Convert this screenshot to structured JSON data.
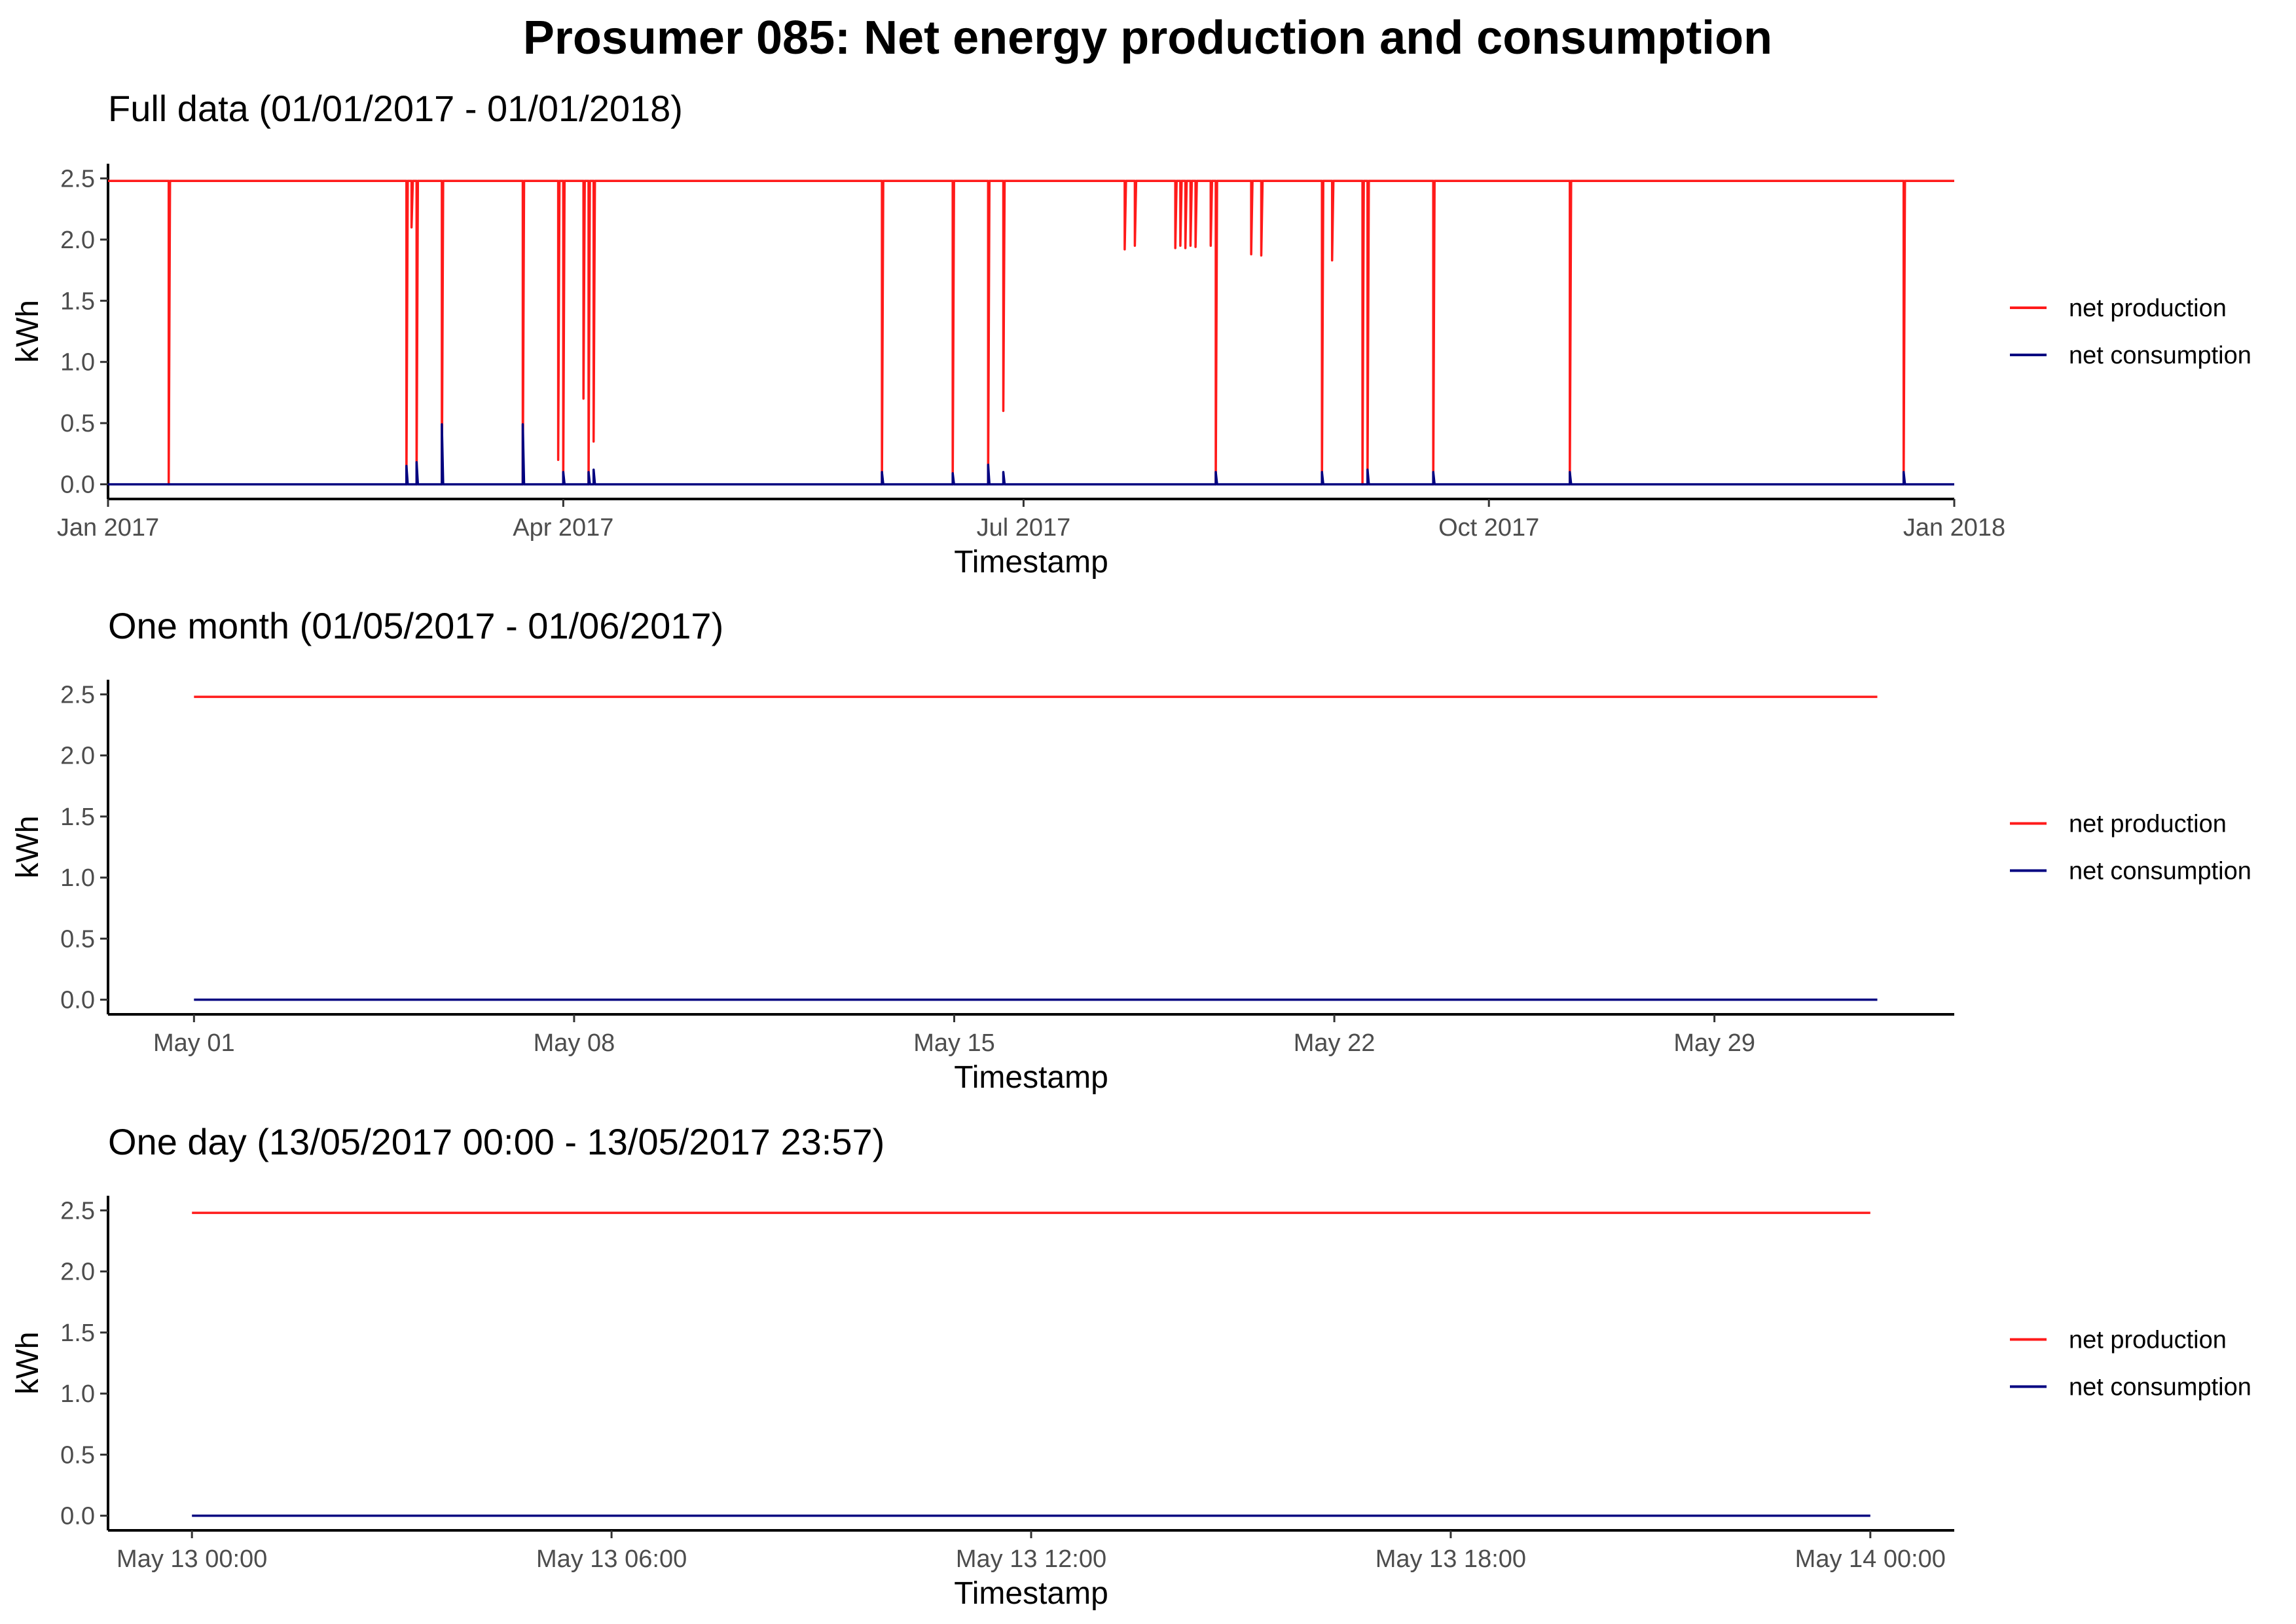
{
  "title": "Prosumer 085: Net energy production and consumption",
  "colors": {
    "production": "#ff1a1a",
    "consumption": "#000080",
    "axis": "#000000",
    "tick_text": "#4d4d4d"
  },
  "legend": {
    "production_label": "net production",
    "consumption_label": "net consumption"
  },
  "chart_data": [
    {
      "type": "line",
      "title": "Full data (01/01/2017 - 01/01/2018)",
      "xlabel": "Timestamp",
      "ylabel": "kWh",
      "x_unit": "date",
      "xlim": [
        "2017-01-01",
        "2018-01-01"
      ],
      "ylim": [
        -0.12,
        2.62
      ],
      "y_ticks": [
        0.0,
        0.5,
        1.0,
        1.5,
        2.0,
        2.5
      ],
      "y_tick_labels": [
        "0.0",
        "0.5",
        "1.0",
        "1.5",
        "2.0",
        "2.5"
      ],
      "x_ticks": [
        {
          "at": "2017-01-01",
          "label": "Jan 2017"
        },
        {
          "at": "2017-04-01",
          "label": "Apr 2017"
        },
        {
          "at": "2017-07-01",
          "label": "Jul 2017"
        },
        {
          "at": "2017-10-01",
          "label": "Oct 2017"
        },
        {
          "at": "2018-01-01",
          "label": "Jan 2018"
        }
      ],
      "grid": false,
      "legend_position": "right",
      "baseline": {
        "production": 2.48,
        "consumption": 0.0
      },
      "production_dips": [
        {
          "x": "2017-01-13",
          "y": 0.0
        },
        {
          "x": "2017-03-01",
          "y": 0.0
        },
        {
          "x": "2017-03-02",
          "y": 2.1
        },
        {
          "x": "2017-03-03",
          "y": 0.0
        },
        {
          "x": "2017-03-08",
          "y": 0.0
        },
        {
          "x": "2017-03-24",
          "y": 0.0
        },
        {
          "x": "2017-03-31",
          "y": 0.2
        },
        {
          "x": "2017-04-01",
          "y": 0.0
        },
        {
          "x": "2017-04-05",
          "y": 0.7
        },
        {
          "x": "2017-04-06",
          "y": 0.0
        },
        {
          "x": "2017-04-07",
          "y": 0.35
        },
        {
          "x": "2017-06-03",
          "y": 0.0
        },
        {
          "x": "2017-06-17",
          "y": 0.0
        },
        {
          "x": "2017-06-24",
          "y": 0.0
        },
        {
          "x": "2017-06-27",
          "y": 0.6
        },
        {
          "x": "2017-07-21",
          "y": 1.92
        },
        {
          "x": "2017-07-23",
          "y": 1.95
        },
        {
          "x": "2017-07-31",
          "y": 1.93
        },
        {
          "x": "2017-08-01",
          "y": 1.95
        },
        {
          "x": "2017-08-02",
          "y": 1.93
        },
        {
          "x": "2017-08-03",
          "y": 1.95
        },
        {
          "x": "2017-08-04",
          "y": 1.94
        },
        {
          "x": "2017-08-07",
          "y": 1.95
        },
        {
          "x": "2017-08-08",
          "y": 0.0
        },
        {
          "x": "2017-08-15",
          "y": 1.88
        },
        {
          "x": "2017-08-17",
          "y": 1.87
        },
        {
          "x": "2017-08-29",
          "y": 0.0
        },
        {
          "x": "2017-08-31",
          "y": 1.83
        },
        {
          "x": "2017-09-06",
          "y": 0.0
        },
        {
          "x": "2017-09-07",
          "y": 0.0
        },
        {
          "x": "2017-09-20",
          "y": 0.0
        },
        {
          "x": "2017-10-17",
          "y": 0.0
        },
        {
          "x": "2017-12-22",
          "y": 0.0
        }
      ],
      "consumption_spikes": [
        {
          "x": "2017-03-01",
          "y": 0.15
        },
        {
          "x": "2017-03-03",
          "y": 0.18
        },
        {
          "x": "2017-03-08",
          "y": 0.49
        },
        {
          "x": "2017-03-24",
          "y": 0.49
        },
        {
          "x": "2017-04-01",
          "y": 0.1
        },
        {
          "x": "2017-04-06",
          "y": 0.1
        },
        {
          "x": "2017-04-07",
          "y": 0.12
        },
        {
          "x": "2017-06-03",
          "y": 0.1
        },
        {
          "x": "2017-06-17",
          "y": 0.09
        },
        {
          "x": "2017-06-24",
          "y": 0.16
        },
        {
          "x": "2017-06-27",
          "y": 0.1
        },
        {
          "x": "2017-08-08",
          "y": 0.1
        },
        {
          "x": "2017-08-29",
          "y": 0.1
        },
        {
          "x": "2017-09-07",
          "y": 0.12
        },
        {
          "x": "2017-09-20",
          "y": 0.1
        },
        {
          "x": "2017-10-17",
          "y": 0.1
        },
        {
          "x": "2017-12-22",
          "y": 0.1
        }
      ]
    },
    {
      "type": "line",
      "title": "One month (01/05/2017 - 01/06/2017)",
      "xlabel": "Timestamp",
      "ylabel": "kWh",
      "x_unit": "date",
      "xlim": [
        "2017-04-29T10:00",
        "2017-06-02T10:00"
      ],
      "ylim": [
        -0.12,
        2.62
      ],
      "y_ticks": [
        0.0,
        0.5,
        1.0,
        1.5,
        2.0,
        2.5
      ],
      "y_tick_labels": [
        "0.0",
        "0.5",
        "1.0",
        "1.5",
        "2.0",
        "2.5"
      ],
      "x_ticks": [
        {
          "at": "2017-05-01",
          "label": "May 01"
        },
        {
          "at": "2017-05-08",
          "label": "May 08"
        },
        {
          "at": "2017-05-15",
          "label": "May 15"
        },
        {
          "at": "2017-05-22",
          "label": "May 22"
        },
        {
          "at": "2017-05-29",
          "label": "May 29"
        }
      ],
      "grid": false,
      "legend_position": "right",
      "data_range": [
        "2017-05-01",
        "2017-06-01"
      ],
      "baseline": {
        "production": 2.48,
        "consumption": 0.0
      },
      "production_dips": [],
      "consumption_spikes": []
    },
    {
      "type": "line",
      "title": "One day (13/05/2017 00:00 - 13/05/2017 23:57)",
      "xlabel": "Timestamp",
      "ylabel": "kWh",
      "x_unit": "datetime",
      "xlim": [
        "2017-05-12T22:48",
        "2017-05-14T01:12"
      ],
      "ylim": [
        -0.12,
        2.62
      ],
      "y_ticks": [
        0.0,
        0.5,
        1.0,
        1.5,
        2.0,
        2.5
      ],
      "y_tick_labels": [
        "0.0",
        "0.5",
        "1.0",
        "1.5",
        "2.0",
        "2.5"
      ],
      "x_ticks": [
        {
          "at": "2017-05-13T00:00",
          "label": "May 13 00:00"
        },
        {
          "at": "2017-05-13T06:00",
          "label": "May 13 06:00"
        },
        {
          "at": "2017-05-13T12:00",
          "label": "May 13 12:00"
        },
        {
          "at": "2017-05-13T18:00",
          "label": "May 13 18:00"
        },
        {
          "at": "2017-05-14T00:00",
          "label": "May 14 00:00"
        }
      ],
      "grid": false,
      "legend_position": "right",
      "data_range": [
        "2017-05-13T00:00",
        "2017-05-14T00:00"
      ],
      "baseline": {
        "production": 2.48,
        "consumption": 0.0
      },
      "production_dips": [],
      "consumption_spikes": []
    }
  ]
}
